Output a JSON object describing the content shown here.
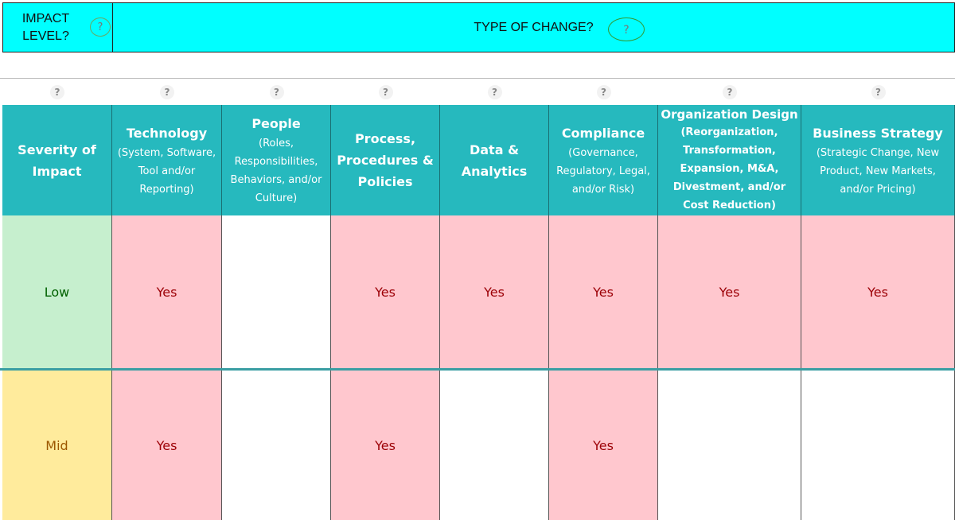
{
  "banner": {
    "impact_label": "IMPACT LEVEL?",
    "impact_help": "?",
    "type_label": "TYPE OF CHANGE?",
    "type_help": "?"
  },
  "help_marks": [
    "?",
    "?",
    "?",
    "?",
    "?",
    "?",
    "?",
    "?"
  ],
  "columns": [
    {
      "title": "Severity of Impact",
      "subtitle": null
    },
    {
      "title": "Technology",
      "subtitle": "(System, Software, Tool and/or Reporting)"
    },
    {
      "title": "People",
      "subtitle": "(Roles, Responsibilities, Behaviors, and/or Culture)"
    },
    {
      "title": "Process, Procedures & Policies",
      "subtitle": null
    },
    {
      "title": "Data & Analytics",
      "subtitle": null
    },
    {
      "title": "Compliance",
      "subtitle": "(Governance, Regulatory, Legal, and/or Risk)"
    },
    {
      "title": "Organization Design",
      "subtitle": "(Reorganization, Transformation, Expansion, M&A, Divestment, and/or Cost Reduction)"
    },
    {
      "title": "Business Strategy",
      "subtitle": "(Strategic Change, New Product, New Markets, and/or Pricing)"
    }
  ],
  "rows": [
    {
      "label": "Low",
      "cells": [
        "Yes",
        null,
        "Yes",
        "Yes",
        "Yes",
        "Yes",
        "Yes"
      ]
    },
    {
      "label": "Mid",
      "cells": [
        "Yes",
        null,
        "Yes",
        null,
        "Yes",
        null,
        null
      ]
    }
  ]
}
